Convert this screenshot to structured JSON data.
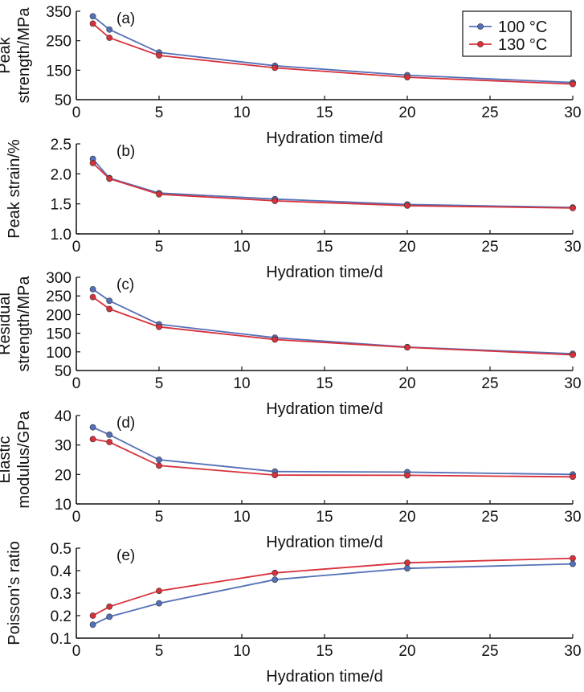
{
  "colors": {
    "series_100": "#5470b8",
    "series_130": "#d8313b",
    "axis": "#111111"
  },
  "legend": {
    "labels": [
      "100 °C",
      "130 °C"
    ],
    "position": "top-right"
  },
  "chart_data": [
    {
      "type": "line",
      "panel_label": "(a)",
      "xlabel": "Hydration time/d",
      "ylabel": [
        "Peak",
        "strength/MPa"
      ],
      "xlim": [
        0,
        30
      ],
      "ylim": [
        50,
        350
      ],
      "xticks": [
        "0",
        "5",
        "10",
        "15",
        "20",
        "25",
        "30"
      ],
      "yticks": [
        "50",
        "150",
        "250",
        "350"
      ],
      "x": [
        1,
        2,
        5,
        12,
        20,
        30
      ],
      "series": [
        {
          "name": "100 °C",
          "values": [
            333,
            288,
            210,
            165,
            133,
            108
          ]
        },
        {
          "name": "130 °C",
          "values": [
            308,
            260,
            200,
            158,
            126,
            103
          ]
        }
      ]
    },
    {
      "type": "line",
      "panel_label": "(b)",
      "xlabel": "Hydration time/d",
      "ylabel": [
        "Peak strain/%"
      ],
      "xlim": [
        0,
        30
      ],
      "ylim": [
        1.0,
        2.5
      ],
      "xticks": [
        "0",
        "5",
        "10",
        "15",
        "20",
        "25",
        "30"
      ],
      "yticks": [
        "1.0",
        "1.5",
        "2.0",
        "2.5"
      ],
      "x": [
        1,
        2,
        5,
        12,
        20,
        30
      ],
      "series": [
        {
          "name": "100 °C",
          "values": [
            2.25,
            1.93,
            1.68,
            1.58,
            1.49,
            1.44
          ]
        },
        {
          "name": "130 °C",
          "values": [
            2.18,
            1.92,
            1.66,
            1.55,
            1.47,
            1.43
          ]
        }
      ]
    },
    {
      "type": "line",
      "panel_label": "(c)",
      "xlabel": "Hydration time/d",
      "ylabel": [
        "Residual",
        "strength/MPa"
      ],
      "xlim": [
        0,
        30
      ],
      "ylim": [
        50,
        300
      ],
      "xticks": [
        "0",
        "5",
        "10",
        "15",
        "20",
        "25",
        "30"
      ],
      "yticks": [
        "50",
        "100",
        "150",
        "200",
        "250",
        "300"
      ],
      "x": [
        1,
        2,
        5,
        12,
        20,
        30
      ],
      "series": [
        {
          "name": "100 °C",
          "values": [
            268,
            237,
            174,
            138,
            113,
            95
          ]
        },
        {
          "name": "130 °C",
          "values": [
            247,
            215,
            167,
            133,
            112,
            92
          ]
        }
      ]
    },
    {
      "type": "line",
      "panel_label": "(d)",
      "xlabel": "Hydration time/d",
      "ylabel": [
        "Elastic",
        "modulus/GPa"
      ],
      "xlim": [
        0,
        30
      ],
      "ylim": [
        10,
        40
      ],
      "xticks": [
        "0",
        "5",
        "10",
        "15",
        "20",
        "25",
        "30"
      ],
      "yticks": [
        "10",
        "20",
        "30",
        "40"
      ],
      "x": [
        1,
        2,
        5,
        12,
        20,
        30
      ],
      "series": [
        {
          "name": "100 °C",
          "values": [
            36,
            33.5,
            25,
            21,
            20.8,
            20
          ]
        },
        {
          "name": "130 °C",
          "values": [
            32,
            31,
            23,
            19.8,
            19.7,
            19.2
          ]
        }
      ]
    },
    {
      "type": "line",
      "panel_label": "(e)",
      "xlabel": "Hydration time/d",
      "ylabel": [
        "Poisson's ratio"
      ],
      "xlim": [
        0,
        30
      ],
      "ylim": [
        0.1,
        0.5
      ],
      "xticks": [
        "0",
        "5",
        "10",
        "15",
        "20",
        "25",
        "30"
      ],
      "yticks": [
        "0.1",
        "0.2",
        "0.3",
        "0.4",
        "0.5"
      ],
      "x": [
        1,
        2,
        5,
        12,
        20,
        30
      ],
      "series": [
        {
          "name": "100 °C",
          "values": [
            0.16,
            0.195,
            0.255,
            0.36,
            0.41,
            0.43
          ]
        },
        {
          "name": "130 °C",
          "values": [
            0.2,
            0.24,
            0.31,
            0.39,
            0.435,
            0.455
          ]
        }
      ]
    }
  ]
}
